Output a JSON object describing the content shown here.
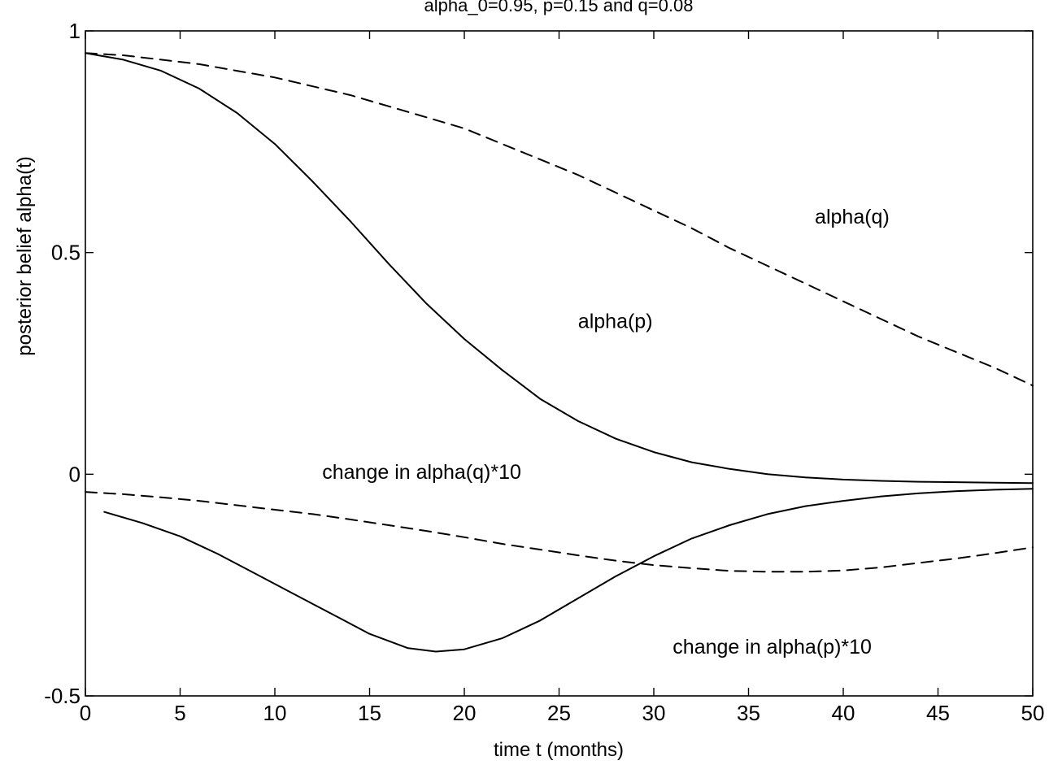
{
  "chart_data": {
    "type": "line",
    "title": "alpha_0=0.95, p=0.15 and q=0.08",
    "xlabel": "time t (months)",
    "ylabel": "posterior belief alpha(t)",
    "xlim": [
      0,
      50
    ],
    "ylim": [
      -0.5,
      1
    ],
    "xticks": [
      0,
      5,
      10,
      15,
      20,
      25,
      30,
      35,
      40,
      45,
      50
    ],
    "yticks": [
      -0.5,
      0,
      0.5,
      1
    ],
    "xtick_labels": [
      "0",
      "5",
      "10",
      "15",
      "20",
      "25",
      "30",
      "35",
      "40",
      "45",
      "50"
    ],
    "ytick_labels": [
      "-0.5",
      "0",
      "0.5",
      "1"
    ],
    "grid": false,
    "legend": "none",
    "series": [
      {
        "name": "alpha(p)",
        "style": "solid",
        "x": [
          0,
          2,
          4,
          6,
          8,
          10,
          12,
          14,
          16,
          18,
          20,
          22,
          24,
          26,
          28,
          30,
          32,
          34,
          36,
          38,
          40,
          42,
          44,
          46,
          48,
          50
        ],
        "values": [
          0.95,
          0.935,
          0.91,
          0.87,
          0.815,
          0.745,
          0.66,
          0.57,
          0.475,
          0.385,
          0.305,
          0.235,
          0.17,
          0.12,
          0.08,
          0.05,
          0.027,
          0.012,
          0.0,
          -0.007,
          -0.012,
          -0.015,
          -0.017,
          -0.018,
          -0.019,
          -0.02
        ]
      },
      {
        "name": "alpha(q)",
        "style": "dashed",
        "x": [
          0,
          2,
          4,
          6,
          8,
          10,
          12,
          14,
          16,
          18,
          20,
          22,
          24,
          26,
          28,
          30,
          32,
          34,
          36,
          38,
          40,
          42,
          44,
          46,
          48,
          50
        ],
        "values": [
          0.95,
          0.945,
          0.935,
          0.925,
          0.91,
          0.895,
          0.875,
          0.855,
          0.83,
          0.805,
          0.78,
          0.745,
          0.71,
          0.675,
          0.635,
          0.595,
          0.555,
          0.51,
          0.47,
          0.43,
          0.39,
          0.35,
          0.31,
          0.275,
          0.24,
          0.2
        ]
      },
      {
        "name": "change in alpha(p)*10",
        "style": "solid",
        "x": [
          1,
          3,
          5,
          7,
          9,
          11,
          13,
          15,
          17,
          18.5,
          20,
          22,
          24,
          26,
          28,
          30,
          32,
          34,
          36,
          38,
          40,
          42,
          44,
          46,
          48,
          50
        ],
        "values": [
          -0.085,
          -0.11,
          -0.14,
          -0.18,
          -0.225,
          -0.27,
          -0.315,
          -0.36,
          -0.392,
          -0.4,
          -0.395,
          -0.37,
          -0.33,
          -0.28,
          -0.23,
          -0.185,
          -0.145,
          -0.115,
          -0.09,
          -0.072,
          -0.06,
          -0.05,
          -0.043,
          -0.038,
          -0.035,
          -0.033
        ]
      },
      {
        "name": "change in alpha(q)*10",
        "style": "dashed",
        "x": [
          0,
          2,
          4,
          6,
          8,
          10,
          12,
          14,
          16,
          18,
          20,
          22,
          24,
          26,
          28,
          30,
          32,
          34,
          36,
          38,
          40,
          42,
          44,
          46,
          48,
          50
        ],
        "values": [
          -0.04,
          -0.045,
          -0.052,
          -0.06,
          -0.07,
          -0.08,
          -0.09,
          -0.102,
          -0.115,
          -0.128,
          -0.142,
          -0.157,
          -0.17,
          -0.183,
          -0.195,
          -0.205,
          -0.212,
          -0.218,
          -0.22,
          -0.22,
          -0.217,
          -0.21,
          -0.2,
          -0.19,
          -0.178,
          -0.165
        ]
      }
    ],
    "annotations": [
      {
        "text": "alpha(q)",
        "x": 38.5,
        "y": 0.565
      },
      {
        "text": "alpha(p)",
        "x": 26,
        "y": 0.33
      },
      {
        "text": "change in alpha(q)*10",
        "x": 12.5,
        "y": -0.01
      },
      {
        "text": "change in alpha(p)*10",
        "x": 31,
        "y": -0.405
      }
    ]
  }
}
